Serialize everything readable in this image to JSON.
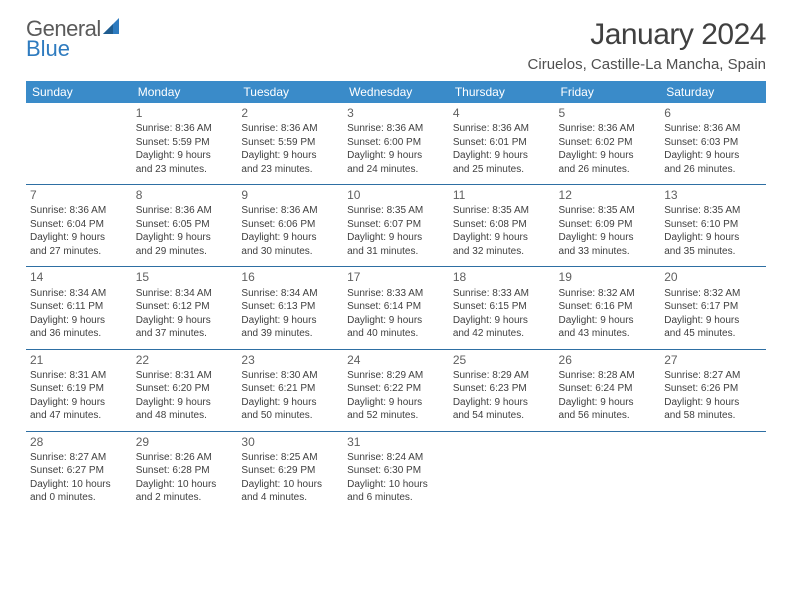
{
  "logo": {
    "word1": "General",
    "word2": "Blue"
  },
  "title": "January 2024",
  "location": "Ciruelos, Castille-La Mancha, Spain",
  "weekdays": [
    "Sunday",
    "Monday",
    "Tuesday",
    "Wednesday",
    "Thursday",
    "Friday",
    "Saturday"
  ],
  "colors": {
    "header_bg": "#3a8bc9",
    "header_fg": "#ffffff",
    "rule": "#2e6fa3",
    "text": "#404040",
    "logo_gray": "#5a5a5a",
    "logo_blue": "#2e7bbf"
  },
  "font": {
    "family": "Arial",
    "title_size": 30,
    "location_size": 15,
    "th_size": 12,
    "daynum_size": 12,
    "cell_size": 10
  },
  "grid": {
    "rows": 5,
    "cols": 7,
    "start_col": 1
  },
  "days": [
    {
      "n": "1",
      "sr": "Sunrise: 8:36 AM",
      "ss": "Sunset: 5:59 PM",
      "d1": "Daylight: 9 hours",
      "d2": "and 23 minutes."
    },
    {
      "n": "2",
      "sr": "Sunrise: 8:36 AM",
      "ss": "Sunset: 5:59 PM",
      "d1": "Daylight: 9 hours",
      "d2": "and 23 minutes."
    },
    {
      "n": "3",
      "sr": "Sunrise: 8:36 AM",
      "ss": "Sunset: 6:00 PM",
      "d1": "Daylight: 9 hours",
      "d2": "and 24 minutes."
    },
    {
      "n": "4",
      "sr": "Sunrise: 8:36 AM",
      "ss": "Sunset: 6:01 PM",
      "d1": "Daylight: 9 hours",
      "d2": "and 25 minutes."
    },
    {
      "n": "5",
      "sr": "Sunrise: 8:36 AM",
      "ss": "Sunset: 6:02 PM",
      "d1": "Daylight: 9 hours",
      "d2": "and 26 minutes."
    },
    {
      "n": "6",
      "sr": "Sunrise: 8:36 AM",
      "ss": "Sunset: 6:03 PM",
      "d1": "Daylight: 9 hours",
      "d2": "and 26 minutes."
    },
    {
      "n": "7",
      "sr": "Sunrise: 8:36 AM",
      "ss": "Sunset: 6:04 PM",
      "d1": "Daylight: 9 hours",
      "d2": "and 27 minutes."
    },
    {
      "n": "8",
      "sr": "Sunrise: 8:36 AM",
      "ss": "Sunset: 6:05 PM",
      "d1": "Daylight: 9 hours",
      "d2": "and 29 minutes."
    },
    {
      "n": "9",
      "sr": "Sunrise: 8:36 AM",
      "ss": "Sunset: 6:06 PM",
      "d1": "Daylight: 9 hours",
      "d2": "and 30 minutes."
    },
    {
      "n": "10",
      "sr": "Sunrise: 8:35 AM",
      "ss": "Sunset: 6:07 PM",
      "d1": "Daylight: 9 hours",
      "d2": "and 31 minutes."
    },
    {
      "n": "11",
      "sr": "Sunrise: 8:35 AM",
      "ss": "Sunset: 6:08 PM",
      "d1": "Daylight: 9 hours",
      "d2": "and 32 minutes."
    },
    {
      "n": "12",
      "sr": "Sunrise: 8:35 AM",
      "ss": "Sunset: 6:09 PM",
      "d1": "Daylight: 9 hours",
      "d2": "and 33 minutes."
    },
    {
      "n": "13",
      "sr": "Sunrise: 8:35 AM",
      "ss": "Sunset: 6:10 PM",
      "d1": "Daylight: 9 hours",
      "d2": "and 35 minutes."
    },
    {
      "n": "14",
      "sr": "Sunrise: 8:34 AM",
      "ss": "Sunset: 6:11 PM",
      "d1": "Daylight: 9 hours",
      "d2": "and 36 minutes."
    },
    {
      "n": "15",
      "sr": "Sunrise: 8:34 AM",
      "ss": "Sunset: 6:12 PM",
      "d1": "Daylight: 9 hours",
      "d2": "and 37 minutes."
    },
    {
      "n": "16",
      "sr": "Sunrise: 8:34 AM",
      "ss": "Sunset: 6:13 PM",
      "d1": "Daylight: 9 hours",
      "d2": "and 39 minutes."
    },
    {
      "n": "17",
      "sr": "Sunrise: 8:33 AM",
      "ss": "Sunset: 6:14 PM",
      "d1": "Daylight: 9 hours",
      "d2": "and 40 minutes."
    },
    {
      "n": "18",
      "sr": "Sunrise: 8:33 AM",
      "ss": "Sunset: 6:15 PM",
      "d1": "Daylight: 9 hours",
      "d2": "and 42 minutes."
    },
    {
      "n": "19",
      "sr": "Sunrise: 8:32 AM",
      "ss": "Sunset: 6:16 PM",
      "d1": "Daylight: 9 hours",
      "d2": "and 43 minutes."
    },
    {
      "n": "20",
      "sr": "Sunrise: 8:32 AM",
      "ss": "Sunset: 6:17 PM",
      "d1": "Daylight: 9 hours",
      "d2": "and 45 minutes."
    },
    {
      "n": "21",
      "sr": "Sunrise: 8:31 AM",
      "ss": "Sunset: 6:19 PM",
      "d1": "Daylight: 9 hours",
      "d2": "and 47 minutes."
    },
    {
      "n": "22",
      "sr": "Sunrise: 8:31 AM",
      "ss": "Sunset: 6:20 PM",
      "d1": "Daylight: 9 hours",
      "d2": "and 48 minutes."
    },
    {
      "n": "23",
      "sr": "Sunrise: 8:30 AM",
      "ss": "Sunset: 6:21 PM",
      "d1": "Daylight: 9 hours",
      "d2": "and 50 minutes."
    },
    {
      "n": "24",
      "sr": "Sunrise: 8:29 AM",
      "ss": "Sunset: 6:22 PM",
      "d1": "Daylight: 9 hours",
      "d2": "and 52 minutes."
    },
    {
      "n": "25",
      "sr": "Sunrise: 8:29 AM",
      "ss": "Sunset: 6:23 PM",
      "d1": "Daylight: 9 hours",
      "d2": "and 54 minutes."
    },
    {
      "n": "26",
      "sr": "Sunrise: 8:28 AM",
      "ss": "Sunset: 6:24 PM",
      "d1": "Daylight: 9 hours",
      "d2": "and 56 minutes."
    },
    {
      "n": "27",
      "sr": "Sunrise: 8:27 AM",
      "ss": "Sunset: 6:26 PM",
      "d1": "Daylight: 9 hours",
      "d2": "and 58 minutes."
    },
    {
      "n": "28",
      "sr": "Sunrise: 8:27 AM",
      "ss": "Sunset: 6:27 PM",
      "d1": "Daylight: 10 hours",
      "d2": "and 0 minutes."
    },
    {
      "n": "29",
      "sr": "Sunrise: 8:26 AM",
      "ss": "Sunset: 6:28 PM",
      "d1": "Daylight: 10 hours",
      "d2": "and 2 minutes."
    },
    {
      "n": "30",
      "sr": "Sunrise: 8:25 AM",
      "ss": "Sunset: 6:29 PM",
      "d1": "Daylight: 10 hours",
      "d2": "and 4 minutes."
    },
    {
      "n": "31",
      "sr": "Sunrise: 8:24 AM",
      "ss": "Sunset: 6:30 PM",
      "d1": "Daylight: 10 hours",
      "d2": "and 6 minutes."
    }
  ]
}
